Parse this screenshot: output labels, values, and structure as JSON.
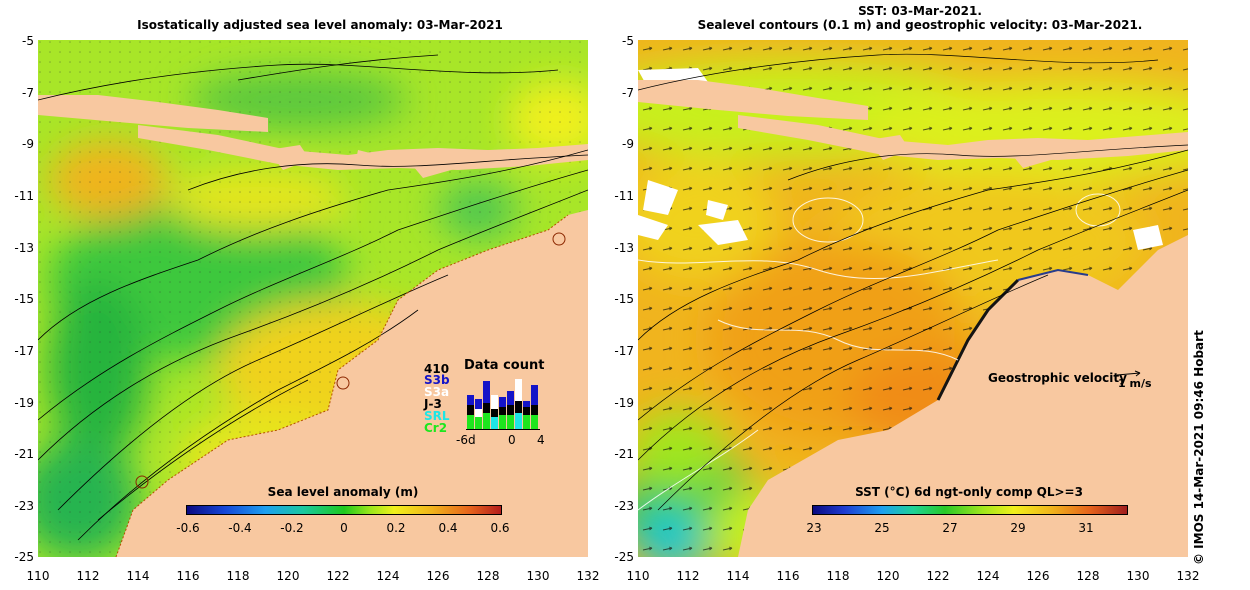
{
  "left_panel": {
    "title": "Isostatically adjusted sea level anomaly: 03-Mar-2021",
    "colorbar": {
      "title": "Sea level anomaly (m)",
      "ticks": [
        "-0.6",
        "-0.4",
        "-0.2",
        "0",
        "0.2",
        "0.4",
        "0.6"
      ]
    },
    "data_count": {
      "title": "Data count",
      "count": "410",
      "satellites": [
        {
          "name": "S3b",
          "color": "#1414c8"
        },
        {
          "name": "S3a",
          "color": "#ffffff"
        },
        {
          "name": "J-3",
          "color": "#000000"
        },
        {
          "name": "SRL",
          "color": "#1ee6e6"
        },
        {
          "name": "Cr2",
          "color": "#1ee61e"
        }
      ],
      "x_ticks": [
        "-6d",
        "0",
        "4"
      ]
    }
  },
  "right_panel": {
    "title_line1": "SST: 03-Mar-2021.",
    "title_line2": "Sealevel contours (0.1 m) and geostrophic velocity: 03-Mar-2021.",
    "colorbar": {
      "title": "SST (°C) 6d ngt-only comp QL>=3",
      "ticks": [
        "23",
        "25",
        "27",
        "29",
        "31"
      ]
    },
    "velocity_legend": {
      "label": "Geostrophic velocity",
      "unit": "1 m/s"
    }
  },
  "axes": {
    "y_ticks": [
      "-5",
      "-7",
      "-9",
      "-11",
      "-13",
      "-15",
      "-17",
      "-19",
      "-21",
      "-23",
      "-25"
    ],
    "x_ticks": [
      "110",
      "112",
      "114",
      "116",
      "118",
      "120",
      "122",
      "124",
      "126",
      "128",
      "130",
      "132"
    ]
  },
  "credit": "© IMOS 14-Mar-2021 09:46 Hobart",
  "colors": {
    "land": "#f8c8a0",
    "ocean_low": "#1ec81e",
    "ocean_mid": "#c8f01e",
    "ocean_high": "#f0a01e"
  }
}
